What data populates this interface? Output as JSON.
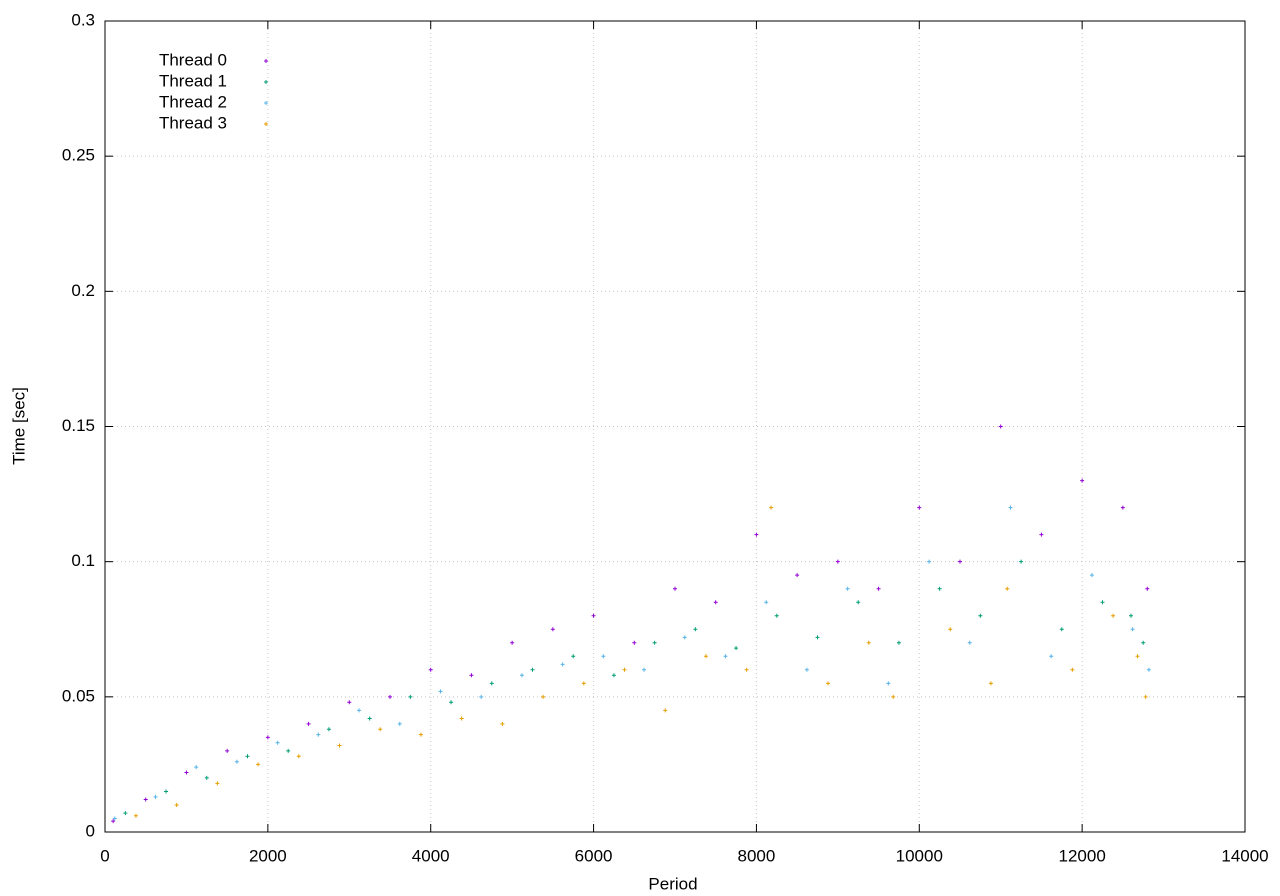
{
  "chart_data": {
    "type": "scatter",
    "x_label": "Period",
    "y_label": "Time [sec]",
    "xlim": [
      0,
      14000
    ],
    "ylim": [
      0,
      0.3
    ],
    "xticks": [
      0,
      2000,
      4000,
      6000,
      8000,
      10000,
      12000,
      14000
    ],
    "yticks": [
      0,
      0.05,
      0.1,
      0.15,
      0.2,
      0.25,
      0.3
    ],
    "grid": true,
    "legend": "top-left",
    "series": [
      {
        "name": "Thread 0",
        "color": "#9400d3",
        "x": [
          100,
          500,
          1000,
          1500,
          2000,
          2500,
          3000,
          3500,
          4000,
          4500,
          5000,
          5500,
          6000,
          6500,
          7000,
          7500,
          8000,
          8500,
          9000,
          9500,
          10000,
          10500,
          11000,
          11500,
          12000,
          12500,
          12800
        ],
        "values": [
          0.004,
          0.012,
          0.022,
          0.03,
          0.035,
          0.04,
          0.048,
          0.05,
          0.06,
          0.058,
          0.07,
          0.075,
          0.08,
          0.07,
          0.09,
          0.085,
          0.11,
          0.095,
          0.1,
          0.09,
          0.12,
          0.1,
          0.15,
          0.11,
          0.13,
          0.12,
          0.09
        ]
      },
      {
        "name": "Thread 1",
        "color": "#009e73",
        "x": [
          250,
          750,
          1250,
          1750,
          2250,
          2750,
          3250,
          3750,
          4250,
          4750,
          5250,
          5750,
          6250,
          6750,
          7250,
          7750,
          8250,
          8750,
          9250,
          9750,
          10250,
          10750,
          11250,
          11750,
          12250,
          12600,
          12750
        ],
        "values": [
          0.007,
          0.015,
          0.02,
          0.028,
          0.03,
          0.038,
          0.042,
          0.05,
          0.048,
          0.055,
          0.06,
          0.065,
          0.058,
          0.07,
          0.075,
          0.068,
          0.08,
          0.072,
          0.085,
          0.07,
          0.09,
          0.08,
          0.1,
          0.075,
          0.085,
          0.08,
          0.07
        ]
      },
      {
        "name": "Thread 2",
        "color": "#56b4e9",
        "x": [
          120,
          620,
          1120,
          1620,
          2120,
          2620,
          3120,
          3620,
          4120,
          4620,
          5120,
          5620,
          6120,
          6620,
          7120,
          7620,
          8120,
          8620,
          9120,
          9620,
          10120,
          10620,
          11120,
          11620,
          12120,
          12620,
          12820
        ],
        "values": [
          0.005,
          0.013,
          0.024,
          0.026,
          0.033,
          0.036,
          0.045,
          0.04,
          0.052,
          0.05,
          0.058,
          0.062,
          0.065,
          0.06,
          0.072,
          0.065,
          0.085,
          0.06,
          0.09,
          0.055,
          0.1,
          0.07,
          0.12,
          0.065,
          0.095,
          0.075,
          0.06
        ]
      },
      {
        "name": "Thread 3",
        "color": "#e69f00",
        "x": [
          380,
          880,
          1380,
          1880,
          2380,
          2880,
          3380,
          3880,
          4380,
          4880,
          5380,
          5880,
          6380,
          6880,
          7380,
          7880,
          8180,
          8880,
          9380,
          9680,
          10380,
          10880,
          11080,
          11880,
          12380,
          12680,
          12780
        ],
        "values": [
          0.006,
          0.01,
          0.018,
          0.025,
          0.028,
          0.032,
          0.038,
          0.036,
          0.042,
          0.04,
          0.05,
          0.055,
          0.06,
          0.045,
          0.065,
          0.06,
          0.12,
          0.055,
          0.07,
          0.05,
          0.075,
          0.055,
          0.09,
          0.06,
          0.08,
          0.065,
          0.05
        ]
      }
    ]
  }
}
